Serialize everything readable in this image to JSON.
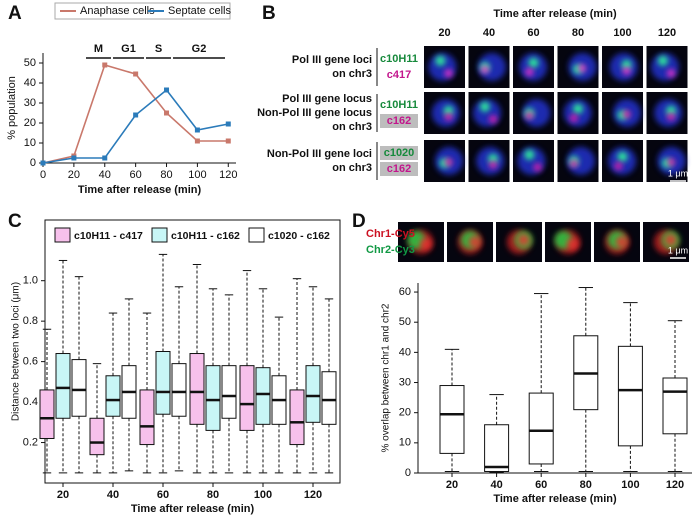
{
  "panel_labels": [
    "A",
    "B",
    "C",
    "D"
  ],
  "chart_data": [
    {
      "type": "line",
      "legend": "top",
      "x": [
        0,
        20,
        40,
        60,
        80,
        100,
        120
      ],
      "series": [
        {
          "name": "Anaphase cells",
          "color": "#c9786b",
          "values": [
            0,
            3.5,
            49,
            44.5,
            25,
            11,
            11
          ]
        },
        {
          "name": "Septate cells",
          "color": "#2b7bba",
          "values": [
            0,
            2.5,
            2.5,
            24,
            36.5,
            16.5,
            19.5
          ]
        }
      ],
      "phases": [
        "M",
        "G1",
        "S",
        "G2"
      ],
      "xlabel": "Time after release (min)",
      "ylabel": "% population",
      "xlim": [
        0,
        125
      ],
      "xticks": [
        0,
        20,
        40,
        60,
        80,
        100,
        120
      ],
      "ylim": [
        0,
        55
      ],
      "yticks": [
        0,
        10,
        20,
        30,
        40,
        50
      ]
    },
    {
      "type": "box",
      "legend": "top",
      "categories": [
        "20",
        "40",
        "60",
        "80",
        "100",
        "120"
      ],
      "series": [
        {
          "name": "c10H11 - c417",
          "color": "#f7c1ec",
          "min": [
            0.05,
            0.05,
            0.05,
            0.05,
            0.05,
            0.05
          ],
          "q1": [
            0.22,
            0.14,
            0.19,
            0.29,
            0.26,
            0.19
          ],
          "median": [
            0.32,
            0.2,
            0.28,
            0.45,
            0.39,
            0.3
          ],
          "q3": [
            0.46,
            0.32,
            0.46,
            0.64,
            0.58,
            0.46
          ],
          "max": [
            0.76,
            0.59,
            0.84,
            1.08,
            1.05,
            1.01
          ]
        },
        {
          "name": "c10H11 - c162",
          "color": "#c8f6f6",
          "min": [
            0.05,
            0.05,
            0.05,
            0.05,
            0.05,
            0.05
          ],
          "q1": [
            0.32,
            0.33,
            0.34,
            0.26,
            0.29,
            0.3
          ],
          "median": [
            0.47,
            0.41,
            0.45,
            0.41,
            0.44,
            0.43
          ],
          "q3": [
            0.64,
            0.53,
            0.65,
            0.58,
            0.57,
            0.58
          ],
          "max": [
            1.1,
            0.84,
            1.13,
            0.96,
            0.96,
            0.97
          ]
        },
        {
          "name": "c1020 - c162",
          "color": "#ffffff",
          "min": [
            0.05,
            0.06,
            0.06,
            0.05,
            0.05,
            0.05
          ],
          "q1": [
            0.33,
            0.32,
            0.33,
            0.32,
            0.29,
            0.29
          ],
          "median": [
            0.46,
            0.45,
            0.45,
            0.43,
            0.41,
            0.41
          ],
          "q3": [
            0.61,
            0.58,
            0.59,
            0.58,
            0.53,
            0.55
          ],
          "max": [
            1.02,
            0.91,
            0.97,
            0.93,
            0.82,
            0.91
          ]
        }
      ],
      "xlabel": "Time after release (min)",
      "ylabel": "Distance between two loci (μm)",
      "ylim": [
        0,
        1.3
      ],
      "yticks": [
        0.2,
        0.4,
        0.6,
        0.8,
        {
          "value": 1,
          "label": "1.0"
        }
      ]
    },
    {
      "type": "box",
      "categories": [
        "20",
        "40",
        "60",
        "80",
        "100",
        "120"
      ],
      "series": [
        {
          "color": "#ffffff",
          "min": [
            0.5,
            0.2,
            0.5,
            0.5,
            0.5,
            0.5
          ],
          "q1": [
            6.5,
            0.5,
            3,
            21,
            9,
            13
          ],
          "median": [
            19.5,
            2,
            14,
            33,
            27.5,
            27
          ],
          "q3": [
            29,
            16,
            26.5,
            45.5,
            42,
            31.5
          ],
          "max": [
            41,
            26,
            59.5,
            61.5,
            56.5,
            50.5
          ]
        }
      ],
      "xlabel": "Time after release (min)",
      "ylabel": "% overlap between chr1 and chr2",
      "ylim": [
        0,
        63
      ],
      "yticks": [
        0,
        10,
        20,
        30,
        40,
        50,
        60
      ]
    }
  ],
  "microscopy": {
    "title": "Time after release (min)",
    "columns": [
      "20",
      "40",
      "60",
      "80",
      "100",
      "120"
    ],
    "rows": [
      {
        "label": [
          "Pol III gene loci",
          "on chr3"
        ],
        "probes": [
          "c10H11",
          "c417"
        ]
      },
      {
        "label": [
          "Pol III gene locus",
          "Non-Pol III gene locus",
          "on chr3"
        ],
        "probes": [
          "c10H11",
          "c162"
        ]
      },
      {
        "label": [
          "Non-Pol III gene loci",
          "on chr3"
        ],
        "probes": [
          "c1020",
          "c162"
        ]
      }
    ],
    "scale_bar": "1 μm"
  },
  "overlap_images": {
    "probes": [
      "Chr1-Cy5",
      "Chr2-Cy3"
    ],
    "scale_bar": "1 μm"
  }
}
